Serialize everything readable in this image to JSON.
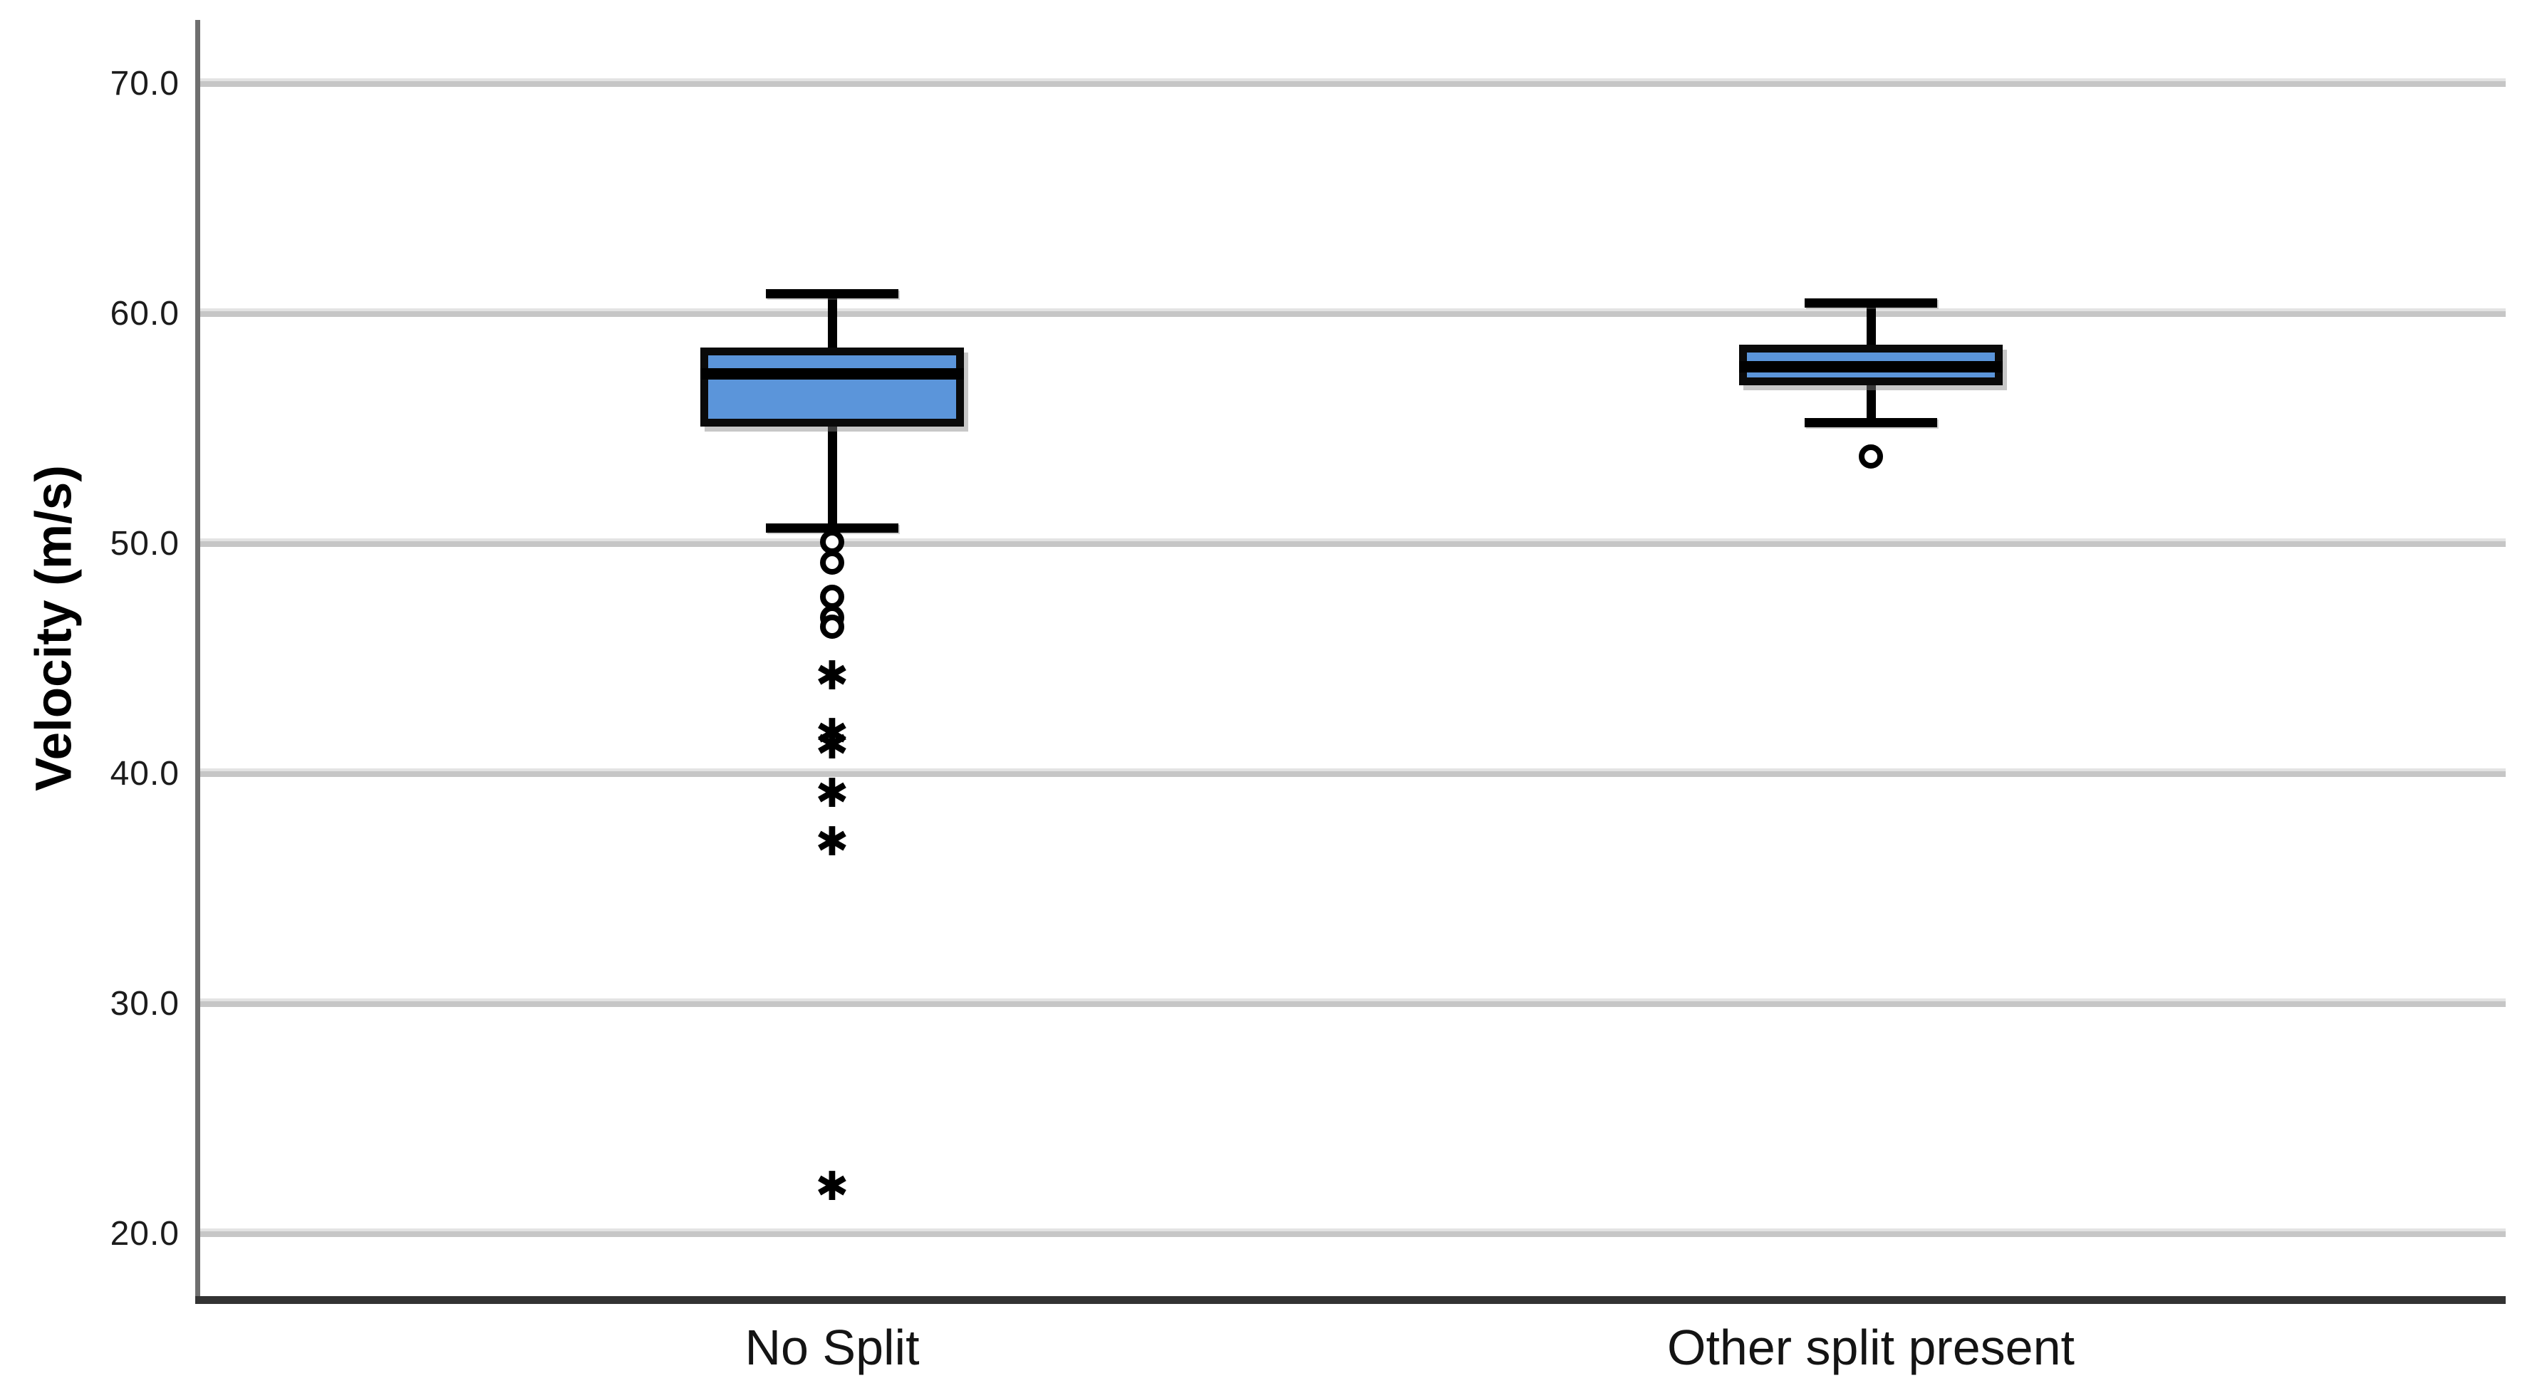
{
  "chart_data": {
    "type": "boxplot",
    "title": "",
    "xlabel": "",
    "ylabel": "Velocity (m/s)",
    "grid": true,
    "legend": "none",
    "y_axis": {
      "tick_labels": [
        "70.0",
        "60.0",
        "50.0",
        "40.0",
        "30.0",
        "20.0"
      ],
      "tick_values": [
        70,
        60,
        50,
        40,
        30,
        20
      ],
      "visible_range": [
        17.2,
        72.8
      ]
    },
    "categories": [
      "No Split",
      "Other split present"
    ],
    "series": [
      {
        "category": "No Split",
        "whisker_high": 60.9,
        "q3": 58.4,
        "median": 57.4,
        "q1": 55.3,
        "whisker_low": 50.7,
        "outliers": [
          50.1,
          49.2,
          47.7,
          46.8,
          46.4
        ],
        "extremes": [
          44.2,
          41.7,
          41.2,
          39.1,
          37.0,
          22.0
        ]
      },
      {
        "category": "Other split present",
        "whisker_high": 60.5,
        "q3": 58.5,
        "median": 57.7,
        "q1": 57.1,
        "whisker_low": 55.3,
        "outliers": [
          53.8
        ],
        "extremes": []
      }
    ],
    "markers": {
      "outlier_symbol": "circle",
      "extreme_symbol": "✱"
    },
    "colors": {
      "box_fill": "#5b95da",
      "box_border": "#0a0a0a",
      "line": "#000000",
      "gridline": "#c6c6c6",
      "y_axis_line": "#6f6f6f",
      "x_axis_line": "#333333",
      "background": "#ffffff"
    }
  }
}
